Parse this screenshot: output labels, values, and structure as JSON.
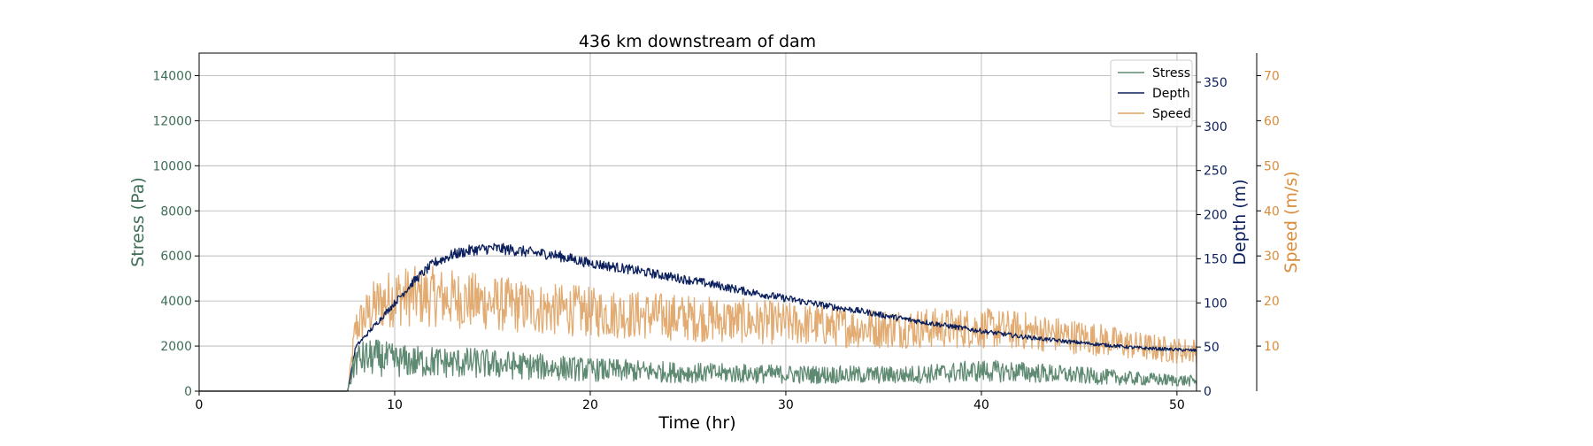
{
  "chart_data": {
    "type": "line",
    "title": "436 km downstream of dam",
    "xlabel": "Time (hr)",
    "xlim": [
      0,
      51
    ],
    "x_ticks": [
      0,
      10,
      20,
      30,
      40,
      50
    ],
    "grid": true,
    "legend_position": "top-right",
    "axes": {
      "stress": {
        "label": "Stress (Pa)",
        "lim": [
          0,
          15000
        ],
        "ticks": [
          0,
          2000,
          4000,
          6000,
          8000,
          10000,
          12000,
          14000
        ],
        "color": "#3d6e55"
      },
      "depth": {
        "label": "Depth (m)",
        "lim": [
          0,
          383
        ],
        "ticks": [
          0,
          50,
          100,
          150,
          200,
          250,
          300,
          350
        ],
        "color": "#0b1f5c"
      },
      "speed": {
        "label": "Speed (m/s)",
        "lim": [
          0,
          75
        ],
        "ticks": [
          10,
          20,
          30,
          40,
          50,
          60,
          70
        ],
        "color": "#d98c3a"
      }
    },
    "x": [
      0,
      5,
      7.6,
      8,
      9,
      10,
      11,
      12,
      13,
      14,
      15,
      16,
      17,
      18,
      19,
      20,
      22,
      24,
      26,
      28,
      30,
      32,
      34,
      36,
      38,
      40,
      42,
      44,
      46,
      48,
      50,
      51
    ],
    "series": [
      {
        "name": "Stress",
        "axis": "stress",
        "color": "#5f8a72",
        "noise": 0.55,
        "values": [
          0,
          0,
          0,
          1400,
          1500,
          1350,
          1300,
          1300,
          1250,
          1250,
          1200,
          1150,
          1100,
          1050,
          1000,
          950,
          900,
          850,
          800,
          780,
          750,
          730,
          720,
          720,
          800,
          900,
          850,
          750,
          650,
          550,
          480,
          450
        ]
      },
      {
        "name": "Depth",
        "axis": "depth",
        "color": "#0b1f5c",
        "noise": 0.04,
        "values": [
          0,
          0,
          0,
          50,
          75,
          100,
          125,
          145,
          155,
          160,
          162,
          160,
          157,
          155,
          150,
          145,
          138,
          130,
          122,
          113,
          105,
          97,
          90,
          82,
          75,
          68,
          62,
          57,
          53,
          49,
          47,
          46
        ]
      },
      {
        "name": "Speed",
        "axis": "speed",
        "color": "#dea263",
        "noise": 0.32,
        "values": [
          0,
          0,
          0,
          14,
          19,
          21,
          21,
          21,
          20.5,
          20,
          19.5,
          19,
          18.5,
          18,
          18,
          17.5,
          17,
          16.5,
          16,
          15.5,
          15,
          14.5,
          14,
          14,
          14,
          14,
          13.5,
          12.5,
          11.5,
          10,
          9,
          9
        ]
      }
    ]
  }
}
